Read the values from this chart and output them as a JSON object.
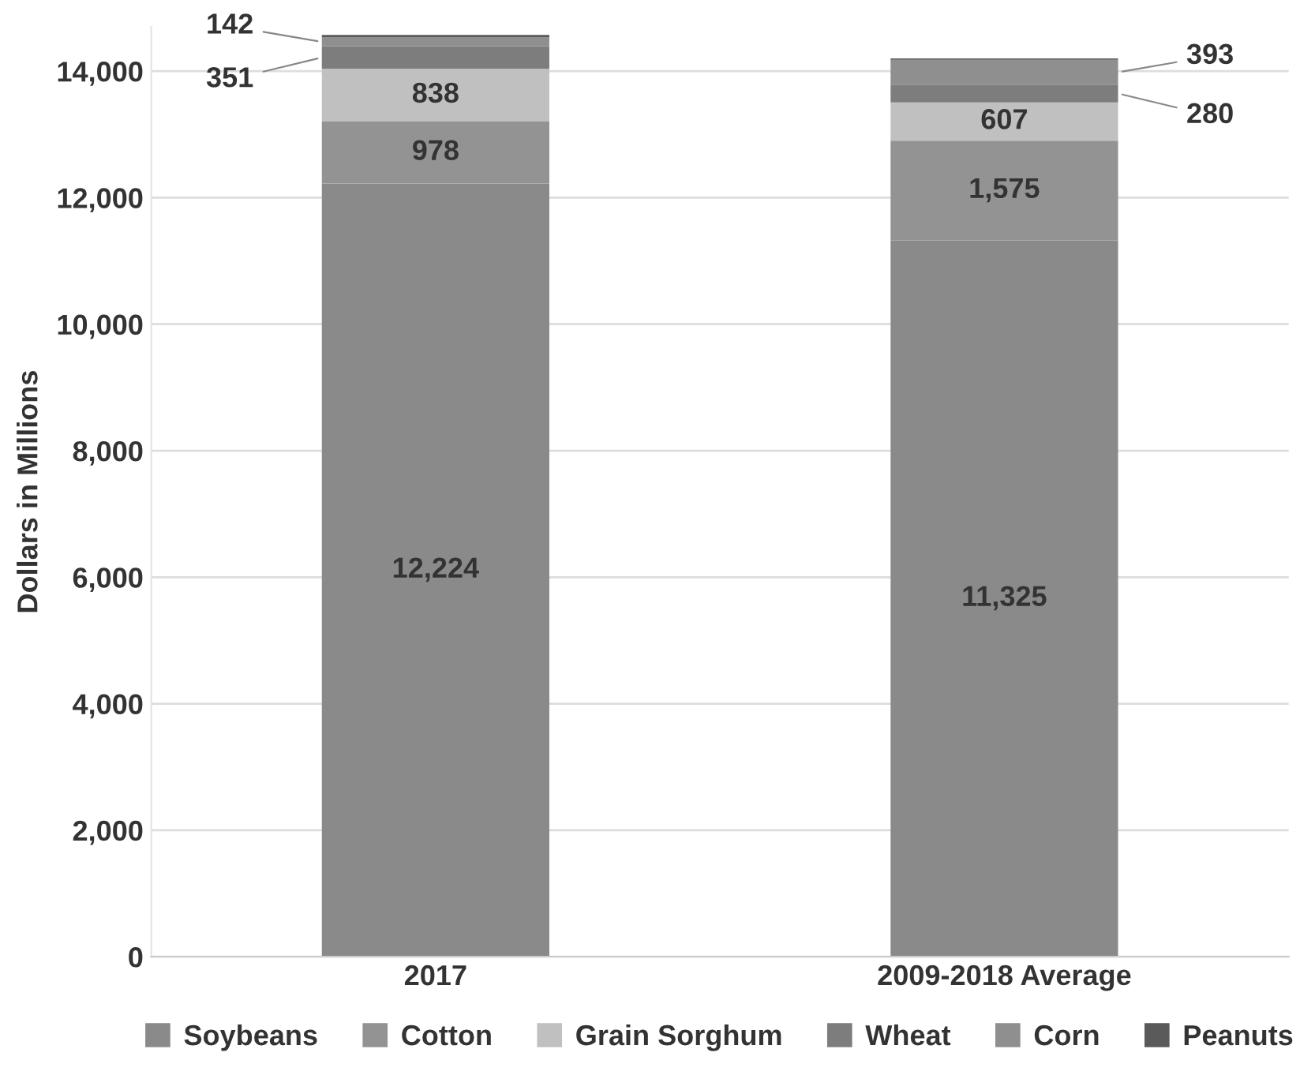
{
  "chart_data": {
    "type": "bar",
    "stacked": true,
    "ylabel": "Dollars in Millions",
    "categories": [
      "2017",
      "2009-2018 Average"
    ],
    "series": [
      {
        "name": "Soybeans",
        "color": "#8a8a8a",
        "values": [
          12224,
          11325
        ],
        "value_labels": [
          "12,224",
          "11,325"
        ]
      },
      {
        "name": "Cotton",
        "color": "#939393",
        "values": [
          978,
          1575
        ],
        "value_labels": [
          "978",
          "1,575"
        ]
      },
      {
        "name": "Grain Sorghum",
        "color": "#c0c0c0",
        "values": [
          838,
          607
        ],
        "value_labels": [
          "838",
          "607"
        ]
      },
      {
        "name": "Wheat",
        "color": "#7d7d7d",
        "values": [
          351,
          280
        ],
        "value_labels": [
          "351",
          "280"
        ]
      },
      {
        "name": "Corn",
        "color": "#8f8f8f",
        "values": [
          142,
          393
        ],
        "value_labels": [
          "142",
          "393"
        ]
      },
      {
        "name": "Peanuts",
        "color": "#5a5a5a",
        "values": [
          40,
          20
        ],
        "value_labels": [
          null,
          null
        ]
      }
    ],
    "ylim": [
      0,
      14700
    ],
    "yticks": [
      {
        "value": 0,
        "label": "0"
      },
      {
        "value": 2000,
        "label": "2,000"
      },
      {
        "value": 4000,
        "label": "4,000"
      },
      {
        "value": 6000,
        "label": "6,000"
      },
      {
        "value": 8000,
        "label": "8,000"
      },
      {
        "value": 10000,
        "label": "10,000"
      },
      {
        "value": 12000,
        "label": "12,000"
      },
      {
        "value": 14000,
        "label": "14,000"
      }
    ],
    "grid": "y",
    "legend": "bottom"
  }
}
